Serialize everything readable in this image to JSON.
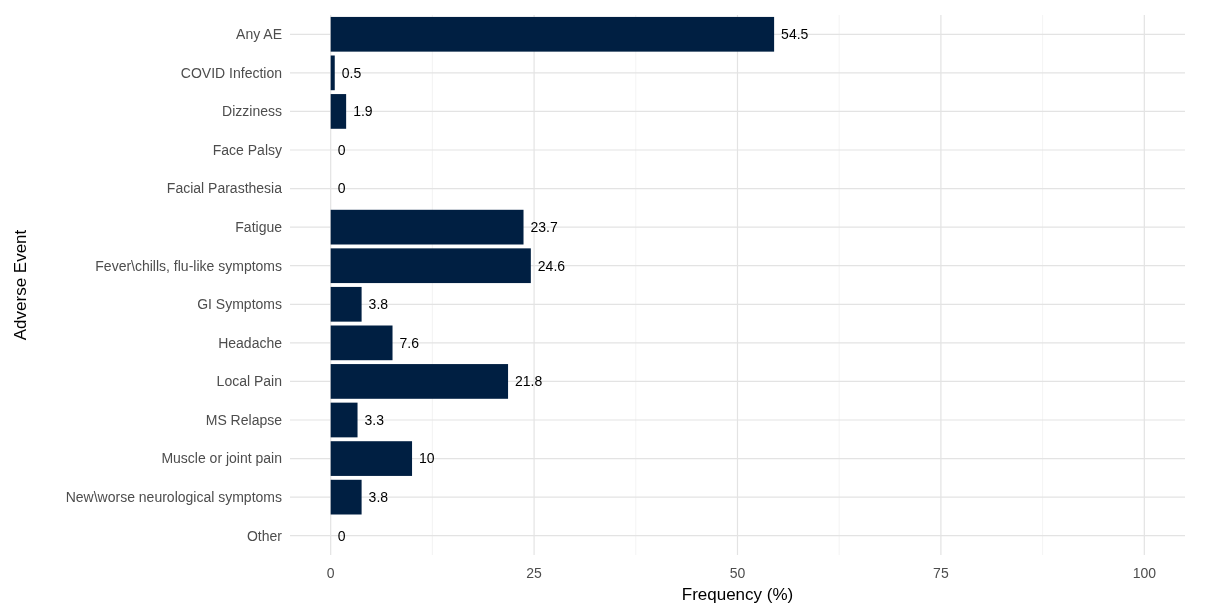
{
  "chart_data": {
    "type": "bar",
    "orientation": "horizontal",
    "xlabel": "Frequency (%)",
    "ylabel": "Adverse Event",
    "categories": [
      "Any AE",
      "COVID Infection",
      "Dizziness",
      "Face Palsy",
      "Facial Parasthesia",
      "Fatigue",
      "Fever\\chills, flu-like symptoms",
      "GI Symptoms",
      "Headache",
      "Local Pain",
      "MS Relapse",
      "Muscle or joint pain",
      "New\\worse neurological symptoms",
      "Other"
    ],
    "values": [
      54.5,
      0.5,
      1.9,
      0,
      0,
      23.7,
      24.6,
      3.8,
      7.6,
      21.8,
      3.3,
      10,
      3.8,
      0
    ],
    "color": "#001f42",
    "xlim": [
      -5,
      105
    ],
    "xticks": [
      0,
      25,
      50,
      75,
      100
    ],
    "grid": true,
    "data_labels": true
  }
}
